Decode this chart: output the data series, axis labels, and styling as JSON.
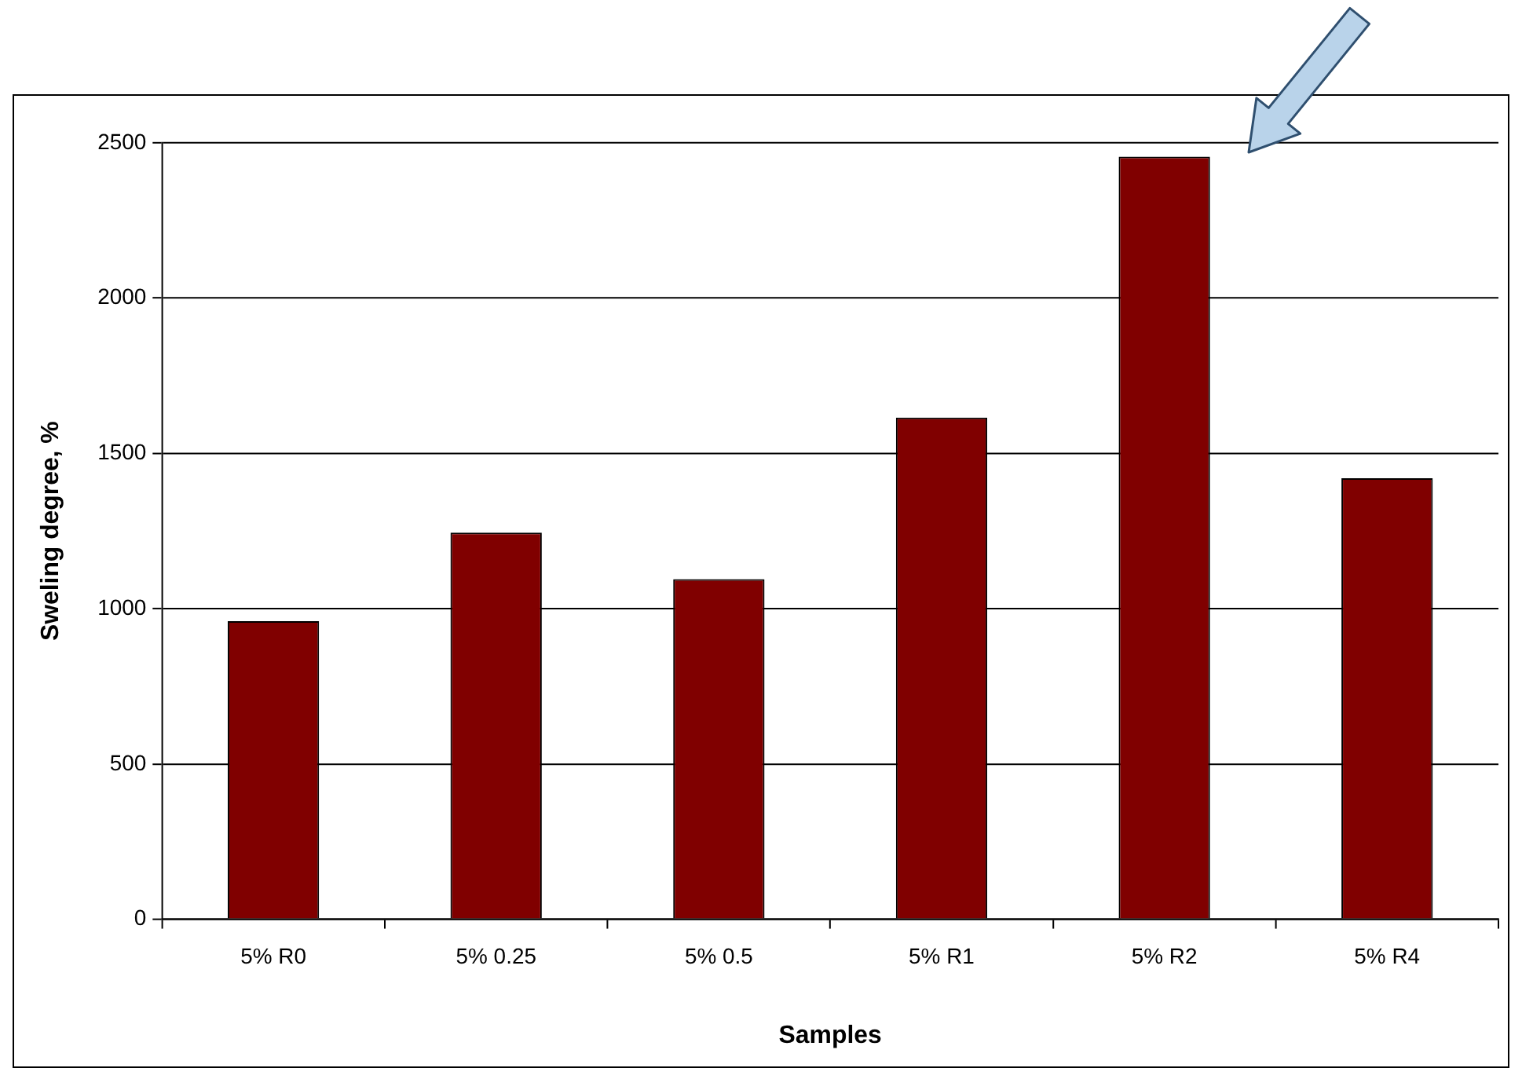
{
  "chart_data": {
    "type": "bar",
    "xlabel": "Samples",
    "ylabel": "Sweling degree, %",
    "categories": [
      "5% R0",
      "5% 0.25",
      "5% 0.5",
      "5% R1",
      "5% R2",
      "5% R4"
    ],
    "values": [
      960,
      1245,
      1095,
      1615,
      2455,
      1420
    ],
    "color": "#800000",
    "ylim": [
      0,
      2500
    ],
    "yticks": [
      0,
      500,
      1000,
      1500,
      2000,
      2500
    ],
    "grid": "y",
    "legend": false
  }
}
